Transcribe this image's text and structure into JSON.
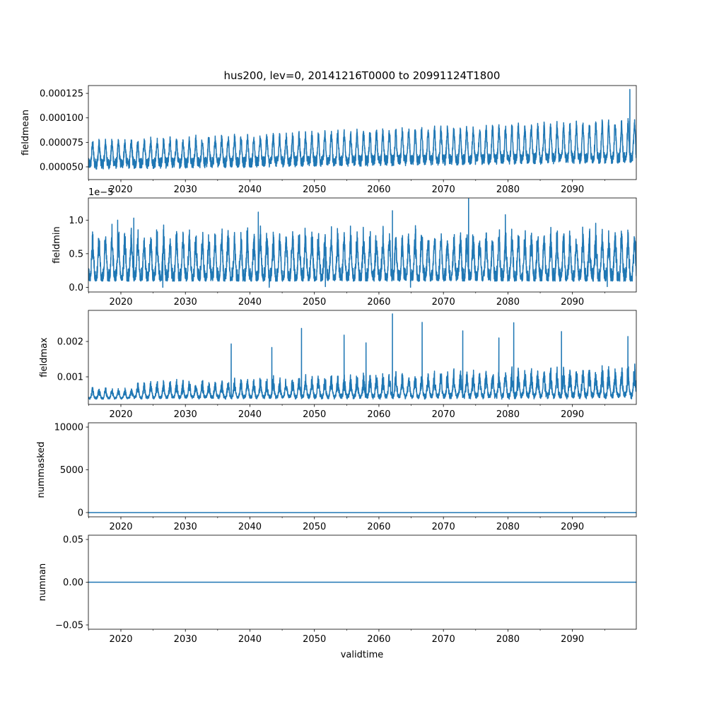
{
  "chart_data": {
    "type": "line",
    "title": "hus200, lev=0, 20141216T0000 to 20991124T1800",
    "xlabel": "validtime",
    "xlim": [
      2014.96,
      2099.9
    ],
    "xticks": [
      "2020",
      "2030",
      "2040",
      "2050",
      "2060",
      "2070",
      "2080",
      "2090"
    ],
    "xtick_values": [
      2020,
      2030,
      2040,
      2050,
      2060,
      2070,
      2080,
      2090
    ],
    "line_color": "#1f77b4",
    "grid": false,
    "legend": "none",
    "panels": [
      {
        "ylabel": "fieldmean",
        "ylim": [
          3.7e-05,
          0.000133
        ],
        "yticks": [
          "0.000050",
          "0.000075",
          "0.000100",
          "0.000125"
        ],
        "ytick_values": [
          5e-05,
          7.5e-05,
          0.0001,
          0.000125
        ],
        "offset_text": "",
        "pattern": "seasonal_mean",
        "params": {
          "base_start": 5.8e-05,
          "base_end": 6.8e-05,
          "amp_start": 2e-05,
          "amp_end": 3.5e-05,
          "noise": 5.5e-06
        },
        "peaks": [
          [
            2098.9,
            0.000129
          ]
        ]
      },
      {
        "ylabel": "fieldmin",
        "ylim": [
          -0.07,
          1.33
        ],
        "yticks": [
          "0.0",
          "0.5",
          "1.0"
        ],
        "ytick_values": [
          0.0,
          0.5,
          1.0
        ],
        "offset_text": "1e−5",
        "pattern": "seasonal_min",
        "params": {
          "floor": 0.1,
          "amp": 0.7,
          "noise": 0.12
        },
        "peaks": [
          [
            2073.9,
            1.32
          ],
          [
            2062.1,
            1.14
          ],
          [
            2041.3,
            1.12
          ],
          [
            2022.0,
            1.03
          ],
          [
            2079.6,
            1.08
          ],
          [
            2019.5,
            1.0
          ]
        ],
        "dips": [
          [
            2026.5,
            0.0
          ],
          [
            2043.0,
            0.0
          ],
          [
            2064.9,
            0.0
          ],
          [
            2095.4,
            0.01
          ],
          [
            2051.7,
            0.01
          ]
        ]
      },
      {
        "ylabel": "fieldmax",
        "ylim": [
          0.00022,
          0.00288
        ],
        "yticks": [
          "0.001",
          "0.002"
        ],
        "ytick_values": [
          0.001,
          0.002
        ],
        "offset_text": "",
        "pattern": "seasonal_max",
        "params": {
          "floor": 0.00036,
          "band_start": 0.0002,
          "band_end": 0.0009,
          "noise": 0.00018,
          "ramp_start": 2021.8
        },
        "peaks": [
          [
            2062.1,
            0.00278
          ],
          [
            2048.0,
            0.00237
          ],
          [
            2066.7,
            0.00254
          ],
          [
            2080.9,
            0.00253
          ],
          [
            2073.0,
            0.0023
          ],
          [
            2088.3,
            0.00228
          ],
          [
            2037.1,
            0.00193
          ],
          [
            2054.6,
            0.00218
          ],
          [
            2098.6,
            0.00214
          ],
          [
            2078.6,
            0.0021
          ],
          [
            2043.4,
            0.00183
          ],
          [
            2058.0,
            0.00196
          ]
        ]
      },
      {
        "ylabel": "nummasked",
        "ylim": [
          -500,
          10500
        ],
        "yticks": [
          "0",
          "5000",
          "10000"
        ],
        "ytick_values": [
          0,
          5000,
          10000
        ],
        "offset_text": "",
        "pattern": "constant",
        "value": 0
      },
      {
        "ylabel": "numnan",
        "ylim": [
          -0.055,
          0.055
        ],
        "yticks": [
          "−0.05",
          "0.00",
          "0.05"
        ],
        "ytick_values": [
          -0.05,
          0.0,
          0.05
        ],
        "offset_text": "",
        "pattern": "constant",
        "value": 0
      }
    ]
  }
}
